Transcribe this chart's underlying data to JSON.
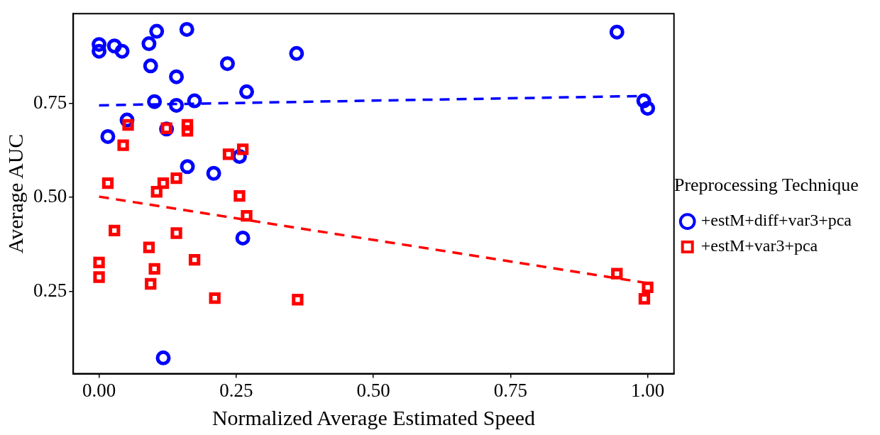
{
  "chart_data": {
    "type": "scatter",
    "xlabel": "Normalized Average Estimated Speed",
    "ylabel": "Average AUC",
    "legend_title": "Preprocessing Technique",
    "legend": "right",
    "grid": false,
    "xlim": [
      -0.047,
      1.048
    ],
    "ylim": [
      0.031,
      0.989
    ],
    "xticks": [
      {
        "value": 0,
        "label": "0.00"
      },
      {
        "value": 0.25,
        "label": "0.25"
      },
      {
        "value": 0.5,
        "label": "0.50"
      },
      {
        "value": 0.75,
        "label": "0.75"
      },
      {
        "value": 1,
        "label": "1.00"
      }
    ],
    "yticks": [
      {
        "value": 0.25,
        "label": "0.25"
      },
      {
        "value": 0.5,
        "label": "0.50"
      },
      {
        "value": 0.75,
        "label": "0.75"
      }
    ],
    "series": [
      {
        "name": "+estM+diff+var3+pca",
        "marker": "circle",
        "color": "#0000ff",
        "x": [
          0.0,
          0.0,
          0.028,
          0.042,
          0.105,
          0.091,
          0.094,
          0.16,
          0.141,
          0.234,
          0.36,
          0.269,
          0.101,
          0.141,
          0.174,
          0.051,
          0.016,
          0.123,
          0.161,
          0.209,
          0.256,
          0.262,
          0.117,
          0.944,
          0.993,
          1.0
        ],
        "values": [
          0.907,
          0.889,
          0.903,
          0.889,
          0.942,
          0.909,
          0.85,
          0.947,
          0.821,
          0.856,
          0.883,
          0.781,
          0.755,
          0.745,
          0.757,
          0.706,
          0.662,
          0.682,
          0.582,
          0.564,
          0.609,
          0.392,
          0.073,
          0.94,
          0.757,
          0.737
        ]
      },
      {
        "name": "+estM+var3+pca",
        "marker": "square",
        "color": "#ff0000",
        "x": [
          0.044,
          0.053,
          0.016,
          0.028,
          0.0,
          0.0,
          0.091,
          0.094,
          0.101,
          0.105,
          0.117,
          0.141,
          0.141,
          0.123,
          0.161,
          0.161,
          0.174,
          0.211,
          0.236,
          0.262,
          0.256,
          0.269,
          0.362,
          0.944,
          1.0,
          0.994
        ],
        "values": [
          0.639,
          0.693,
          0.538,
          0.412,
          0.327,
          0.288,
          0.367,
          0.27,
          0.31,
          0.515,
          0.538,
          0.551,
          0.405,
          0.684,
          0.693,
          0.677,
          0.334,
          0.232,
          0.615,
          0.628,
          0.504,
          0.451,
          0.228,
          0.297,
          0.261,
          0.23
        ]
      },
      {
        "type": "line",
        "line_style": "dashed",
        "color": "#0000ff",
        "x": [
          0,
          1
        ],
        "values": [
          0.745,
          0.77
        ]
      },
      {
        "type": "line",
        "line_style": "dashed",
        "color": "#ff0000",
        "x": [
          0,
          1
        ],
        "values": [
          0.502,
          0.272
        ]
      }
    ]
  }
}
